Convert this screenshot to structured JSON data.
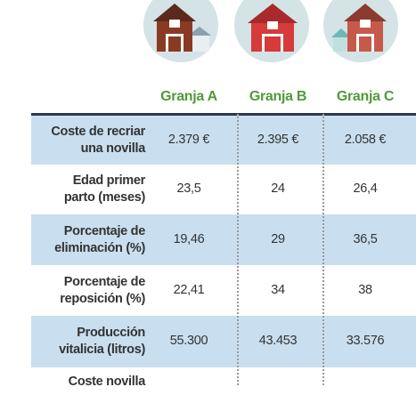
{
  "table": {
    "columns": [
      "Granja A",
      "Granja B",
      "Granja C"
    ],
    "rows": [
      {
        "label": [
          "Coste de recriar",
          "una novilla"
        ],
        "values": [
          "2.379 €",
          "2.395 €",
          "2.058 €"
        ]
      },
      {
        "label": [
          "Edad primer",
          "parto (meses)"
        ],
        "values": [
          "23,5",
          "24",
          "26,4"
        ]
      },
      {
        "label": [
          "Porcentaje de",
          "eliminación (%)"
        ],
        "values": [
          "19,46",
          "29",
          "36,5"
        ]
      },
      {
        "label": [
          "Porcentaje de",
          "reposición (%)"
        ],
        "values": [
          "22,41",
          "34",
          "38"
        ]
      },
      {
        "label": [
          "Producción",
          "vitalicia (litros)"
        ],
        "values": [
          "55.300",
          "43.453",
          "33.576"
        ]
      },
      {
        "label": [
          "Coste novilla"
        ]
      }
    ]
  }
}
